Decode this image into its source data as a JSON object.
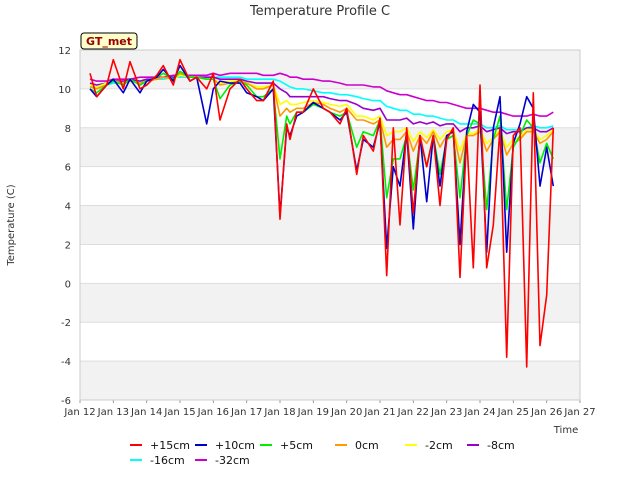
{
  "chart_data": {
    "type": "line",
    "title": "Temperature Profile C",
    "xlabel": "Time",
    "ylabel": "Temperature (C)",
    "badge": "GT_met",
    "xlim": [
      0,
      15
    ],
    "ylim": [
      -6,
      12
    ],
    "yticks": [
      -6,
      -4,
      -2,
      0,
      2,
      4,
      6,
      8,
      10,
      12
    ],
    "xtick_labels": [
      "Jan 12",
      "Jan 13",
      "Jan 14",
      "Jan 15",
      "Jan 16",
      "Jan 17",
      "Jan 18",
      "Jan 19",
      "Jan 20",
      "Jan 21",
      "Jan 22",
      "Jan 23",
      "Jan 24",
      "Jan 25",
      "Jan 26",
      "Jan 27"
    ],
    "grid": true,
    "legend_position": "bottom",
    "x": [
      0.3,
      0.5,
      0.8,
      1.0,
      1.3,
      1.5,
      1.8,
      2.0,
      2.3,
      2.5,
      2.8,
      3.0,
      3.3,
      3.5,
      3.8,
      4.0,
      4.2,
      4.5,
      4.8,
      5.0,
      5.3,
      5.5,
      5.8,
      6.0,
      6.2,
      6.3,
      6.5,
      6.7,
      7.0,
      7.3,
      7.5,
      7.8,
      8.0,
      8.3,
      8.5,
      8.8,
      9.0,
      9.2,
      9.4,
      9.6,
      9.8,
      10.0,
      10.2,
      10.4,
      10.6,
      10.8,
      11.0,
      11.2,
      11.4,
      11.6,
      11.8,
      12.0,
      12.2,
      12.4,
      12.6,
      12.8,
      13.0,
      13.2,
      13.4,
      13.6,
      13.8,
      14.0,
      14.2
    ],
    "series": [
      {
        "name": "+15cm",
        "color": "#ff0000",
        "values": [
          10.8,
          9.6,
          10.2,
          11.5,
          10.0,
          11.4,
          10.0,
          10.2,
          10.7,
          11.2,
          10.2,
          11.5,
          10.4,
          10.6,
          10.0,
          10.8,
          8.4,
          10.0,
          10.5,
          10.0,
          9.4,
          9.4,
          10.4,
          3.3,
          8.2,
          7.4,
          8.8,
          8.8,
          10.0,
          9.0,
          8.8,
          8.2,
          9.0,
          5.6,
          7.6,
          6.8,
          8.5,
          0.4,
          8.0,
          3.0,
          8.0,
          3.6,
          7.6,
          6.0,
          7.6,
          4.0,
          7.4,
          8.0,
          0.3,
          7.6,
          0.8,
          10.2,
          0.8,
          3.0,
          8.0,
          -3.8,
          7.6,
          8.0,
          -4.3,
          9.8,
          -3.2,
          -0.6,
          8.0
        ]
      },
      {
        "name": "+10cm",
        "color": "#0000cc",
        "values": [
          10.0,
          9.6,
          10.2,
          10.5,
          9.8,
          10.5,
          9.8,
          10.4,
          10.6,
          11.0,
          10.4,
          11.2,
          10.4,
          10.6,
          8.2,
          10.0,
          10.4,
          10.3,
          10.3,
          9.8,
          9.6,
          9.4,
          10.0,
          3.5,
          8.0,
          7.6,
          8.6,
          8.8,
          9.3,
          9.0,
          8.8,
          8.4,
          8.8,
          5.8,
          7.4,
          7.0,
          8.3,
          1.8,
          6.0,
          5.0,
          7.8,
          2.8,
          7.6,
          4.2,
          7.6,
          5.0,
          7.6,
          7.8,
          2.0,
          7.8,
          9.2,
          8.8,
          1.6,
          8.0,
          9.6,
          1.6,
          7.2,
          8.2,
          9.6,
          9.0,
          5.0,
          7.0,
          5.0
        ]
      },
      {
        "name": "+5cm",
        "color": "#00ee00",
        "values": [
          10.0,
          9.8,
          10.2,
          10.4,
          10.2,
          10.5,
          10.2,
          10.4,
          10.6,
          10.8,
          10.5,
          10.9,
          10.6,
          10.6,
          10.5,
          10.5,
          9.5,
          10.2,
          10.4,
          10.2,
          9.6,
          9.6,
          10.0,
          6.4,
          8.6,
          8.2,
          8.8,
          8.8,
          9.2,
          9.0,
          8.8,
          8.6,
          8.8,
          7.0,
          7.8,
          7.6,
          8.4,
          4.4,
          6.4,
          6.4,
          7.6,
          4.8,
          7.4,
          6.0,
          7.6,
          5.6,
          7.4,
          7.6,
          4.4,
          7.6,
          8.4,
          8.2,
          3.8,
          7.4,
          8.6,
          3.8,
          7.0,
          7.6,
          8.4,
          8.0,
          6.2,
          7.2,
          6.4
        ]
      },
      {
        "name": "0cm",
        "color": "#ff9900",
        "values": [
          10.1,
          10.0,
          10.2,
          10.4,
          10.3,
          10.4,
          10.3,
          10.4,
          10.5,
          10.6,
          10.5,
          10.8,
          10.6,
          10.6,
          10.5,
          10.5,
          10.2,
          10.3,
          10.4,
          10.3,
          10.0,
          10.0,
          10.2,
          8.6,
          9.0,
          8.8,
          9.0,
          9.0,
          9.3,
          9.2,
          9.0,
          8.8,
          9.0,
          8.4,
          8.4,
          8.2,
          8.4,
          7.0,
          7.4,
          7.4,
          7.8,
          6.8,
          7.6,
          7.2,
          7.8,
          7.0,
          7.6,
          7.8,
          6.2,
          7.6,
          7.6,
          7.8,
          6.8,
          7.4,
          7.8,
          6.6,
          7.2,
          7.4,
          7.8,
          7.8,
          7.2,
          7.4,
          7.8
        ]
      },
      {
        "name": "-2cm",
        "color": "#ffff00",
        "values": [
          10.2,
          10.1,
          10.3,
          10.4,
          10.3,
          10.4,
          10.3,
          10.4,
          10.5,
          10.6,
          10.5,
          10.7,
          10.6,
          10.6,
          10.5,
          10.5,
          10.3,
          10.4,
          10.4,
          10.3,
          10.1,
          10.1,
          10.2,
          9.2,
          9.4,
          9.2,
          9.2,
          9.3,
          9.4,
          9.3,
          9.2,
          9.1,
          9.2,
          8.6,
          8.6,
          8.4,
          8.6,
          7.6,
          7.8,
          7.8,
          8.0,
          7.3,
          7.8,
          7.5,
          7.9,
          7.4,
          7.8,
          7.9,
          6.8,
          7.7,
          7.7,
          7.9,
          7.2,
          7.5,
          7.9,
          7.0,
          7.4,
          7.5,
          7.9,
          7.9,
          7.4,
          7.6,
          7.9
        ]
      },
      {
        "name": "-8cm",
        "color": "#9900cc",
        "values": [
          10.3,
          10.2,
          10.3,
          10.4,
          10.4,
          10.5,
          10.4,
          10.5,
          10.5,
          10.6,
          10.6,
          10.7,
          10.6,
          10.6,
          10.6,
          10.6,
          10.5,
          10.5,
          10.5,
          10.4,
          10.3,
          10.3,
          10.3,
          10.0,
          9.8,
          9.6,
          9.6,
          9.6,
          9.6,
          9.6,
          9.5,
          9.4,
          9.4,
          9.2,
          9.0,
          8.9,
          9.0,
          8.4,
          8.4,
          8.4,
          8.5,
          8.2,
          8.3,
          8.2,
          8.3,
          8.1,
          8.2,
          8.2,
          7.8,
          8.0,
          8.0,
          8.1,
          7.8,
          7.9,
          8.0,
          7.7,
          7.8,
          7.8,
          8.0,
          8.0,
          7.8,
          7.8,
          8.0
        ]
      },
      {
        "name": "-16cm",
        "color": "#00ffff",
        "values": [
          10.1,
          10.1,
          10.2,
          10.3,
          10.3,
          10.4,
          10.4,
          10.4,
          10.5,
          10.5,
          10.6,
          10.6,
          10.6,
          10.6,
          10.6,
          10.6,
          10.6,
          10.6,
          10.6,
          10.5,
          10.5,
          10.5,
          10.5,
          10.4,
          10.2,
          10.1,
          10.0,
          10.0,
          9.9,
          9.8,
          9.8,
          9.7,
          9.7,
          9.6,
          9.5,
          9.4,
          9.4,
          9.1,
          9.0,
          8.9,
          8.9,
          8.7,
          8.7,
          8.6,
          8.6,
          8.5,
          8.4,
          8.4,
          8.2,
          8.2,
          8.2,
          8.2,
          8.0,
          8.0,
          8.1,
          7.9,
          7.9,
          7.9,
          8.0,
          8.1,
          8.0,
          8.0,
          8.1
        ]
      },
      {
        "name": "-32cm",
        "color": "#cc00cc",
        "values": [
          10.5,
          10.4,
          10.4,
          10.5,
          10.5,
          10.5,
          10.6,
          10.6,
          10.6,
          10.6,
          10.7,
          10.7,
          10.7,
          10.7,
          10.7,
          10.8,
          10.7,
          10.8,
          10.8,
          10.8,
          10.8,
          10.7,
          10.7,
          10.8,
          10.7,
          10.6,
          10.6,
          10.5,
          10.5,
          10.4,
          10.4,
          10.3,
          10.2,
          10.2,
          10.2,
          10.1,
          10.1,
          9.9,
          9.8,
          9.7,
          9.7,
          9.6,
          9.5,
          9.4,
          9.4,
          9.3,
          9.3,
          9.2,
          9.1,
          9.0,
          9.0,
          9.0,
          8.9,
          8.8,
          8.8,
          8.7,
          8.6,
          8.6,
          8.6,
          8.7,
          8.6,
          8.6,
          8.8
        ]
      }
    ]
  }
}
